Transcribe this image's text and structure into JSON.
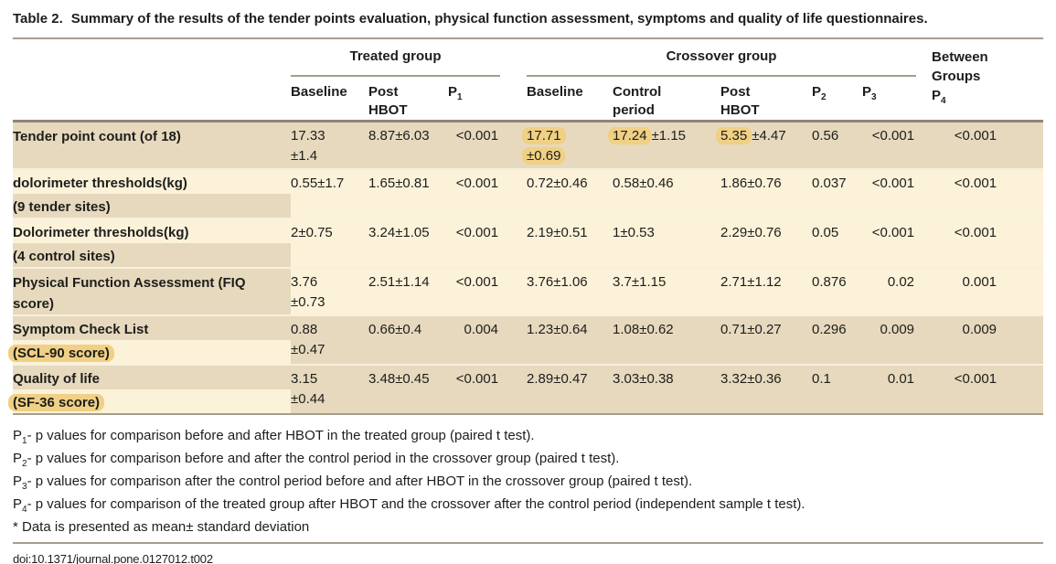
{
  "title": {
    "label": "Table 2.",
    "text": "Summary of the results of the tender points evaluation, physical function assessment, symptoms and quality of life questionnaires."
  },
  "colors": {
    "row_tan": "#e6d9bd",
    "row_cream": "#fcf2d9",
    "highlight": "#f0d084",
    "rule_light": "#a59d8f",
    "rule_heavy": "#8e8577",
    "text": "#1d1d1b"
  },
  "table": {
    "header": {
      "treated_group": "Treated group",
      "crossover_group": "Crossover group",
      "between_lines": [
        "Between",
        "Groups"
      ],
      "between_p": {
        "base": "P",
        "sub": "4"
      },
      "columns": [
        {
          "key": "tb",
          "label": "Baseline"
        },
        {
          "key": "tp",
          "label": "Post\nHBOT"
        },
        {
          "key": "p1",
          "label": {
            "base": "P",
            "sub": "1"
          }
        },
        {
          "key": "cb",
          "label": "Baseline"
        },
        {
          "key": "cp",
          "label": "Control\nperiod"
        },
        {
          "key": "ph",
          "label": "Post\nHBOT"
        },
        {
          "key": "p2",
          "label": {
            "base": "P",
            "sub": "2"
          }
        },
        {
          "key": "p3",
          "label": {
            "base": "P",
            "sub": "3"
          }
        }
      ]
    },
    "rows": [
      {
        "band": "tan",
        "label": {
          "bg": "tan",
          "lines": [
            {
              "t": "Tender point count (of 18)"
            }
          ]
        },
        "cells": {
          "tb": [
            {
              "t": "17.33"
            },
            {
              "t": "±1.4",
              "br": true
            }
          ],
          "tp": [
            {
              "t": "8.87±6.03"
            }
          ],
          "p1": [
            {
              "t": "<0.001"
            }
          ],
          "cb": [
            {
              "t": "17.71",
              "hl": true
            },
            {
              "t": "±0.69",
              "br": true,
              "hl": true
            }
          ],
          "cp": [
            {
              "t": "17.24",
              "hl": true
            },
            {
              "t": "±1.15"
            }
          ],
          "ph": [
            {
              "t": "5.35",
              "hl": true
            },
            {
              "t": "±4.47"
            }
          ],
          "p2": [
            {
              "t": "0.56"
            }
          ],
          "p3": [
            {
              "t": "<0.001"
            }
          ],
          "p4": [
            {
              "t": "<0.001"
            }
          ]
        }
      },
      {
        "band": "cream",
        "label": {
          "bg": "cream",
          "lines": [
            {
              "t": "dolorimeter thresholds(kg)"
            },
            {
              "t": "(9 tender sites)",
              "bg": "tan"
            }
          ]
        },
        "cells": {
          "tb": [
            {
              "t": "0.55±1.7"
            }
          ],
          "tp": [
            {
              "t": "1.65±0.81"
            }
          ],
          "p1": [
            {
              "t": "<0.001"
            }
          ],
          "cb": [
            {
              "t": "0.72±0.46"
            }
          ],
          "cp": [
            {
              "t": "0.58±0.46"
            }
          ],
          "ph": [
            {
              "t": "1.86±0.76"
            }
          ],
          "p2": [
            {
              "t": "0.037"
            }
          ],
          "p3": [
            {
              "t": "<0.001"
            }
          ],
          "p4": [
            {
              "t": "<0.001"
            }
          ]
        }
      },
      {
        "band": "cream",
        "label": {
          "bg": "cream",
          "lines": [
            {
              "t": "Dolorimeter thresholds(kg)"
            },
            {
              "t": "(4 control sites)",
              "bg": "tan"
            }
          ]
        },
        "cells": {
          "tb": [
            {
              "t": "2±0.75"
            }
          ],
          "tp": [
            {
              "t": "3.24±1.05"
            }
          ],
          "p1": [
            {
              "t": "<0.001"
            }
          ],
          "cb": [
            {
              "t": "2.19±0.51"
            }
          ],
          "cp": [
            {
              "t": "1±0.53"
            }
          ],
          "ph": [
            {
              "t": "2.29±0.76"
            }
          ],
          "p2": [
            {
              "t": "0.05"
            }
          ],
          "p3": [
            {
              "t": "<0.001"
            }
          ],
          "p4": [
            {
              "t": "<0.001"
            }
          ]
        }
      },
      {
        "band": "cream",
        "label": {
          "bg": "tan",
          "lines": [
            {
              "t": "Physical Function Assessment (FIQ score)"
            }
          ]
        },
        "cells": {
          "tb": [
            {
              "t": "3.76"
            },
            {
              "t": "±0.73",
              "br": true
            }
          ],
          "tp": [
            {
              "t": "2.51±1.14"
            }
          ],
          "p1": [
            {
              "t": "<0.001"
            }
          ],
          "cb": [
            {
              "t": "3.76±1.06"
            }
          ],
          "cp": [
            {
              "t": "3.7±1.15"
            }
          ],
          "ph": [
            {
              "t": "2.71±1.12"
            }
          ],
          "p2": [
            {
              "t": "0.876"
            }
          ],
          "p3": [
            {
              "t": "0.02"
            }
          ],
          "p4": [
            {
              "t": "0.001"
            }
          ]
        }
      },
      {
        "band": "tan",
        "label": {
          "bg": "tan",
          "lines": [
            {
              "t": "Symptom Check List"
            },
            {
              "t": "(SCL-90 score)",
              "bg": "cream",
              "hl": true
            }
          ]
        },
        "cells": {
          "tb": [
            {
              "t": "0.88"
            },
            {
              "t": "±0.47",
              "br": true
            }
          ],
          "tp": [
            {
              "t": "0.66±0.4"
            }
          ],
          "p1": [
            {
              "t": "0.004"
            }
          ],
          "cb": [
            {
              "t": "1.23±0.64"
            }
          ],
          "cp": [
            {
              "t": "1.08±0.62"
            }
          ],
          "ph": [
            {
              "t": "0.71±0.27"
            }
          ],
          "p2": [
            {
              "t": "0.296"
            }
          ],
          "p3": [
            {
              "t": "0.009"
            }
          ],
          "p4": [
            {
              "t": "0.009"
            }
          ]
        }
      },
      {
        "band": "tan",
        "label": {
          "bg": "tan",
          "lines": [
            {
              "t": "Quality of life"
            },
            {
              "t": "(SF-36 score)",
              "bg": "cream",
              "hl": true
            }
          ]
        },
        "cells": {
          "tb": [
            {
              "t": "3.15"
            },
            {
              "t": "±0.44",
              "br": true
            }
          ],
          "tp": [
            {
              "t": "3.48±0.45"
            }
          ],
          "p1": [
            {
              "t": "<0.001"
            }
          ],
          "cb": [
            {
              "t": "2.89±0.47"
            }
          ],
          "cp": [
            {
              "t": "3.03±0.38"
            }
          ],
          "ph": [
            {
              "t": "3.32±0.36"
            }
          ],
          "p2": [
            {
              "t": "0.1"
            }
          ],
          "p3": [
            {
              "t": "0.01"
            }
          ],
          "p4": [
            {
              "t": "<0.001"
            }
          ]
        }
      }
    ]
  },
  "footnotes": [
    {
      "prefix": "P",
      "sub": "1",
      "text": "- p values for comparison before and after HBOT in the treated group (paired t test)."
    },
    {
      "prefix": "P",
      "sub": "2",
      "text": "- p values for comparison before and after the control period in the crossover group (paired t test)."
    },
    {
      "prefix": "P",
      "sub": "3",
      "text": "- p values for comparison after the control period before and after HBOT in the crossover group (paired t test)."
    },
    {
      "prefix": "P",
      "sub": "4",
      "text": "- p values for comparison of the treated group after HBOT and the crossover after the control period (independent sample t test)."
    },
    {
      "text": "* Data is presented as mean± standard deviation"
    }
  ],
  "doi": "doi:10.1371/journal.pone.0127012.t002"
}
